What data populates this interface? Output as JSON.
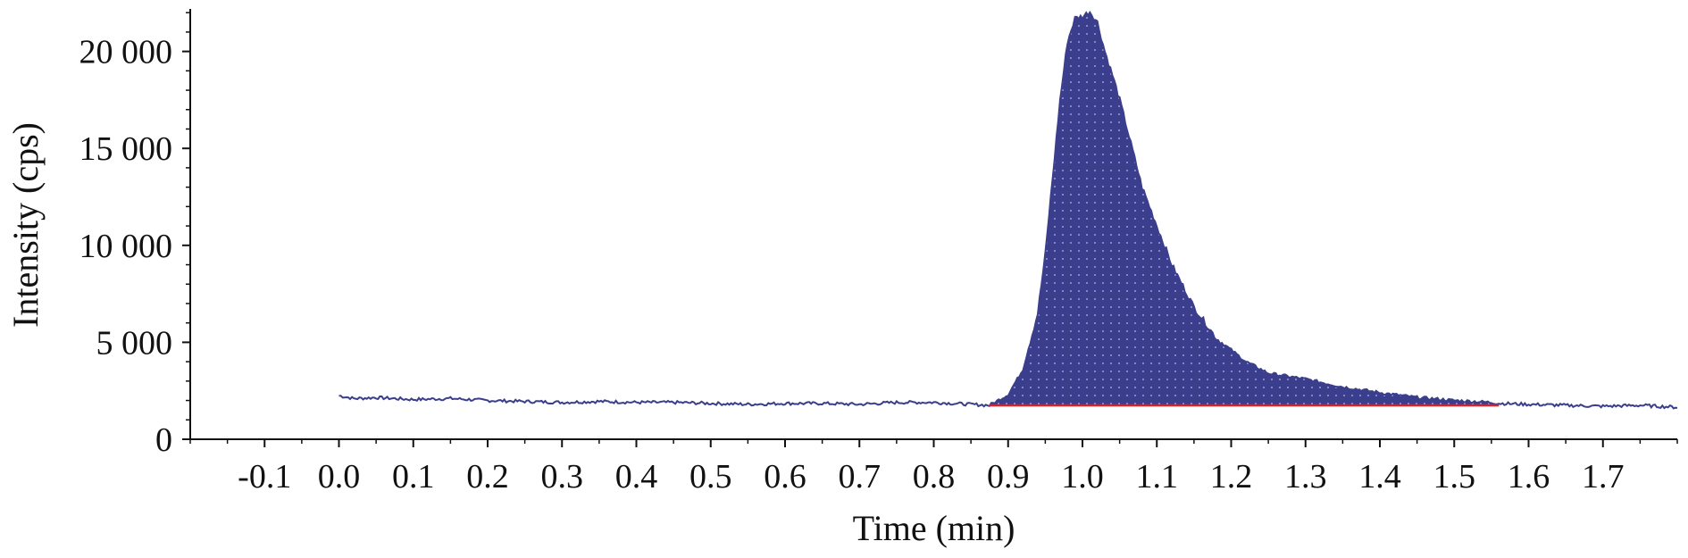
{
  "chart_data": {
    "type": "area",
    "title": "",
    "xlabel": "Time (min)",
    "ylabel": "Intensity (cps)",
    "xlim": [
      -0.2,
      1.8
    ],
    "ylim": [
      0,
      22100
    ],
    "x_ticks": [
      -0.1,
      0.0,
      0.1,
      0.2,
      0.3,
      0.4,
      0.5,
      0.6,
      0.7,
      0.8,
      0.9,
      1.0,
      1.1,
      1.2,
      1.3,
      1.4,
      1.5,
      1.6,
      1.7
    ],
    "x_tick_labels": [
      "-0.1",
      "0.0",
      "0.1",
      "0.2",
      "0.3",
      "0.4",
      "0.5",
      "0.6",
      "0.7",
      "0.8",
      "0.9",
      "1.0",
      "1.1",
      "1.2",
      "1.3",
      "1.4",
      "1.5",
      "1.6",
      "1.7"
    ],
    "y_ticks": [
      0,
      5000,
      10000,
      15000,
      20000
    ],
    "y_tick_labels": [
      "0",
      "5 000",
      "10 000",
      "15 000",
      "20 000"
    ],
    "grid": false,
    "series": [
      {
        "x": [
          0.0,
          0.02,
          0.05,
          0.1,
          0.15,
          0.2,
          0.25,
          0.3,
          0.35,
          0.4,
          0.45,
          0.5,
          0.55,
          0.6,
          0.65,
          0.7,
          0.75,
          0.8,
          0.85,
          0.875,
          0.9,
          0.92,
          0.94,
          0.95,
          0.96,
          0.97,
          0.98,
          0.99,
          1.0,
          1.01,
          1.02,
          1.03,
          1.04,
          1.05,
          1.06,
          1.08,
          1.1,
          1.12,
          1.15,
          1.18,
          1.2,
          1.22,
          1.25,
          1.3,
          1.35,
          1.4,
          1.45,
          1.5,
          1.55,
          1.56,
          1.6,
          1.65,
          1.7,
          1.75,
          1.8
        ],
        "values": [
          2250,
          2100,
          2150,
          2050,
          2100,
          2000,
          1950,
          1900,
          1950,
          1900,
          1900,
          1850,
          1800,
          1850,
          1850,
          1800,
          1900,
          1900,
          1800,
          1750,
          2300,
          3600,
          6500,
          9500,
          13500,
          17500,
          20500,
          21700,
          21800,
          22050,
          21500,
          20000,
          18800,
          17500,
          16000,
          13000,
          11000,
          9000,
          6800,
          5200,
          4600,
          4000,
          3400,
          3100,
          2700,
          2400,
          2150,
          2000,
          1900,
          1850,
          1800,
          1750,
          1700,
          1750,
          1650
        ],
        "color": "#3a3e8c"
      }
    ],
    "integrated_peak": {
      "x_start": 0.875,
      "x_end": 1.56,
      "baseline": 1750,
      "fill_color": "#3a3e8c",
      "baseline_color": "#e02020"
    }
  }
}
